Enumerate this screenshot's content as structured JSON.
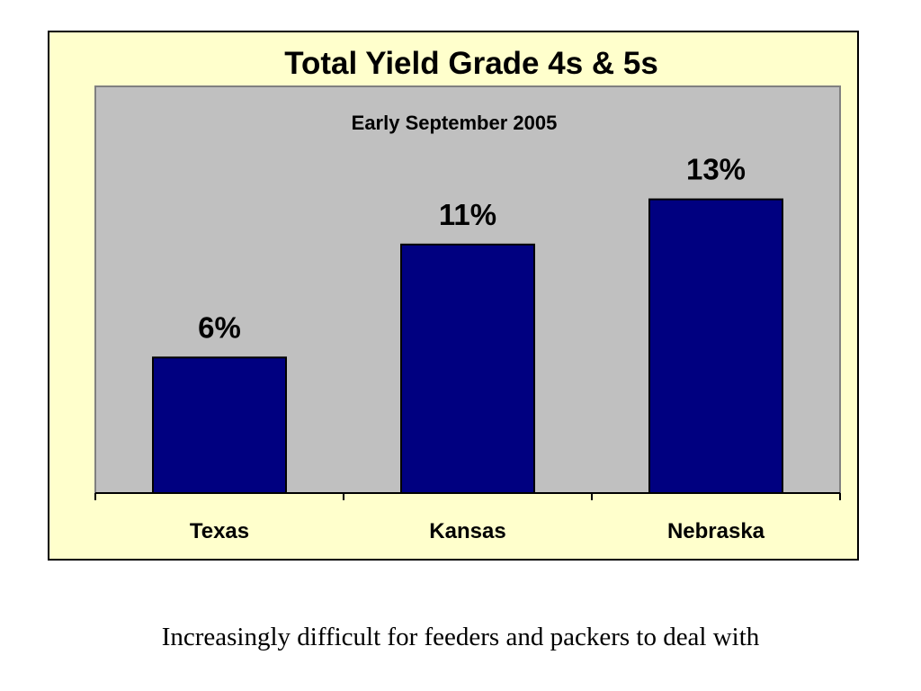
{
  "chart_data": {
    "type": "bar",
    "title": "Total Yield Grade 4s & 5s",
    "subtitle": "Early September 2005",
    "categories": [
      "Texas",
      "Kansas",
      "Nebraska"
    ],
    "values": [
      6,
      11,
      13
    ],
    "value_labels": [
      "6%",
      "11%",
      "13%"
    ],
    "xlabel": "",
    "ylabel": "",
    "ylim": [
      0,
      18
    ],
    "grid": false,
    "legend": "none",
    "colors": {
      "bar": "#000080",
      "plot_area": "#c0c0c0",
      "chart_area": "#ffffcc"
    }
  },
  "caption": "Increasingly difficult for feeders and packers to deal with"
}
